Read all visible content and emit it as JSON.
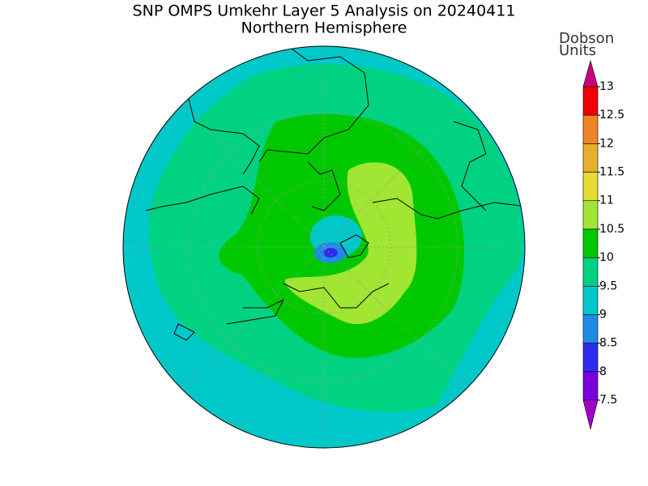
{
  "header": {
    "title": "SNP OMPS Umkehr Layer 5 Analysis on 20240411",
    "subtitle": "Northern Hemisphere"
  },
  "colorbar": {
    "label": "Dobson Units",
    "ticks": [
      7.5,
      8,
      8.5,
      9,
      9.5,
      10,
      10.5,
      11,
      11.5,
      12,
      12.5,
      13
    ],
    "colors": [
      "#7a00dc",
      "#2d2df0",
      "#1e8ce6",
      "#00c8c8",
      "#00d282",
      "#00c800",
      "#a0e632",
      "#e6dc32",
      "#e6af2d",
      "#f08228",
      "#f00000"
    ],
    "under_color": "#a000c8",
    "over_color": "#c8007f"
  }
}
